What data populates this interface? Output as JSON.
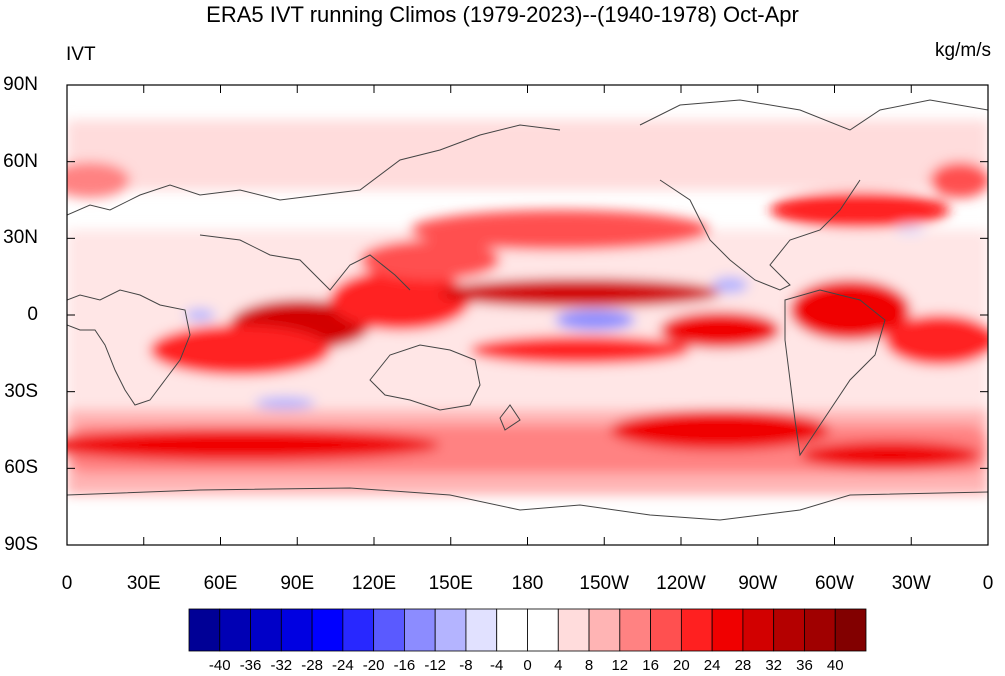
{
  "title": "ERA5 IVT running Climos (1979-2023)--(1940-1978) Oct-Apr",
  "left_label": "IVT",
  "right_label": "kg/m/s",
  "lat_ticks": [
    "90N",
    "60N",
    "30N",
    "0",
    "30S",
    "60S",
    "90S"
  ],
  "lon_ticks": [
    "0",
    "30E",
    "60E",
    "90E",
    "120E",
    "150E",
    "180",
    "150W",
    "120W",
    "90W",
    "60W",
    "30W",
    "0"
  ],
  "colorbar": {
    "labels": [
      "-40",
      "-36",
      "-32",
      "-28",
      "-24",
      "-20",
      "-16",
      "-12",
      "-8",
      "-4",
      "0",
      "4",
      "8",
      "12",
      "16",
      "20",
      "24",
      "28",
      "32",
      "36",
      "40"
    ],
    "colors": [
      "#000096",
      "#0000b4",
      "#0000c8",
      "#0000e1",
      "#0000ff",
      "#2828ff",
      "#5a5aff",
      "#8c8cff",
      "#b4b4ff",
      "#e1e1ff",
      "#ffffff",
      "#ffffff",
      "#ffdcdc",
      "#ffb4b4",
      "#ff8282",
      "#ff5050",
      "#ff2020",
      "#f00000",
      "#d20000",
      "#b40000",
      "#a00000",
      "#820000"
    ]
  },
  "colors": {
    "positive_strong": "#b40000",
    "positive_mid": "#ff2020",
    "positive_weak": "#ffb4b4",
    "negative": "#8c8cff",
    "coastline": "#444444"
  }
}
